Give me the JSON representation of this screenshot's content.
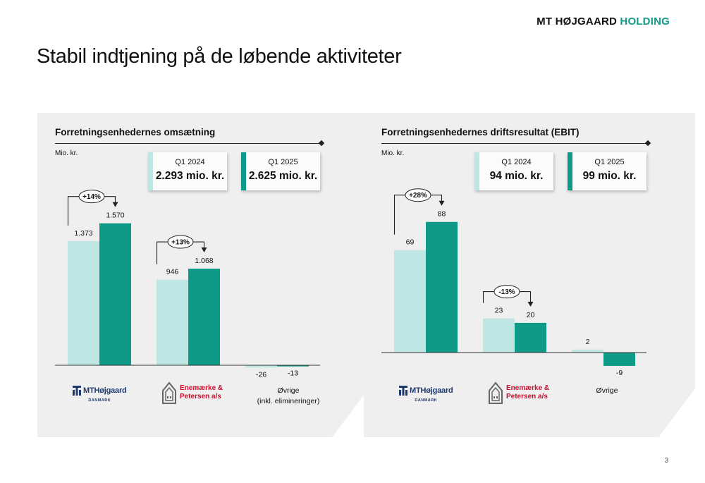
{
  "header": {
    "brand_part1": "MT HØJGAARD",
    "brand_part2": "HOLDING",
    "title": "Stabil indtjening på de løbende aktiviteter"
  },
  "colors": {
    "q1_2024": "#bfe6e2",
    "q1_2025": "#0e9a87",
    "brand_teal": "#129a88",
    "brand_navy": "#1f3b6e",
    "brand_red": "#c8102e"
  },
  "logos": {
    "mt": {
      "word": "MTHøjgaard",
      "sub": "DANMARK",
      "icon": "mt-hojgaard-logo-icon"
    },
    "ep": {
      "line1": "Enemærke &",
      "line2": "Petersen a/s",
      "icon": "house-logo-icon"
    }
  },
  "page_number": "3",
  "chart_data": [
    {
      "type": "bar",
      "title": "Forretningsenhedernes omsætning",
      "ylabel": "Mio. kr.",
      "categories": [
        "MTHøjgaard Danmark",
        "Enemærke & Petersen a/s",
        "Øvrige (inkl. elimineringer)"
      ],
      "category_text": [
        "",
        "",
        "Øvrige"
      ],
      "category_text2": [
        "",
        "",
        "(inkl. elimineringer)"
      ],
      "ylim": [
        -30,
        1700
      ],
      "series": [
        {
          "name": "Q1 2024",
          "values": [
            1373,
            946,
            -26
          ],
          "labels": [
            "1.373",
            "946",
            "-26"
          ]
        },
        {
          "name": "Q1 2025",
          "values": [
            1570,
            1068,
            -13
          ],
          "labels": [
            "1.570",
            "1.068",
            "-13"
          ]
        }
      ],
      "growth": [
        {
          "category_index": 0,
          "label": "+14%"
        },
        {
          "category_index": 1,
          "label": "+13%"
        }
      ],
      "kpis": [
        {
          "period": "Q1 2024",
          "value": "2.293 mio. kr."
        },
        {
          "period": "Q1 2025",
          "value": "2.625 mio. kr."
        }
      ]
    },
    {
      "type": "bar",
      "title": "Forretningsenhedernes driftsresultat (EBIT)",
      "ylabel": "Mio. kr.",
      "categories": [
        "MTHøjgaard Danmark",
        "Enemærke & Petersen a/s",
        "Øvrige"
      ],
      "category_text": [
        "",
        "",
        "Øvrige"
      ],
      "category_text2": [
        "",
        "",
        ""
      ],
      "ylim": [
        -10,
        95
      ],
      "series": [
        {
          "name": "Q1 2024",
          "values": [
            69,
            23,
            2
          ],
          "labels": [
            "69",
            "23",
            "2"
          ]
        },
        {
          "name": "Q1 2025",
          "values": [
            88,
            20,
            -9
          ],
          "labels": [
            "88",
            "20",
            "-9"
          ]
        }
      ],
      "growth": [
        {
          "category_index": 0,
          "label": "+28%"
        },
        {
          "category_index": 1,
          "label": "-13%"
        }
      ],
      "kpis": [
        {
          "period": "Q1 2024",
          "value": "94 mio. kr."
        },
        {
          "period": "Q1 2025",
          "value": "99 mio. kr."
        }
      ]
    }
  ]
}
